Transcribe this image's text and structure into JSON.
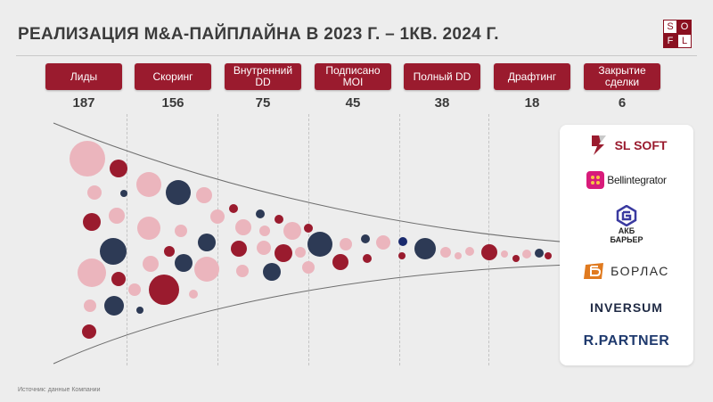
{
  "title": "РЕАЛИЗАЦИЯ M&A-ПАЙПЛАЙНА В 2023 Г. – 1КВ. 2024 Г.",
  "logo_letters": [
    "S",
    "O",
    "F",
    "L"
  ],
  "stages": [
    {
      "label": "Лиды",
      "count": "187"
    },
    {
      "label": "Скоринг",
      "count": "156"
    },
    {
      "label": "Внутренний DD",
      "count": "75"
    },
    {
      "label": "Подписано MOI",
      "count": "45"
    },
    {
      "label": "Полный DD",
      "count": "38"
    },
    {
      "label": "Драфтинг",
      "count": "18"
    },
    {
      "label": "Закрытие сделки",
      "count": "6"
    }
  ],
  "companies": [
    {
      "name": "SL SOFT",
      "icon": "sl-soft-logo"
    },
    {
      "name": "Bellintegrator",
      "icon": "bellintegrator-logo"
    },
    {
      "name": "АКБ БАРЬЕР",
      "icon": "barrier-logo"
    },
    {
      "name": "БОРЛАС",
      "icon": "borlas-logo"
    },
    {
      "name": "INVERSUM",
      "icon": "inversum-logo"
    },
    {
      "name": "R.PARTNER",
      "icon": "rpartner-logo"
    }
  ],
  "source": "Источник: данные Компании",
  "colors": {
    "accent": "#9a1b2e",
    "pink": "#ebb5bd",
    "navy": "#2d3a55",
    "title": "#3b3b3b"
  }
}
